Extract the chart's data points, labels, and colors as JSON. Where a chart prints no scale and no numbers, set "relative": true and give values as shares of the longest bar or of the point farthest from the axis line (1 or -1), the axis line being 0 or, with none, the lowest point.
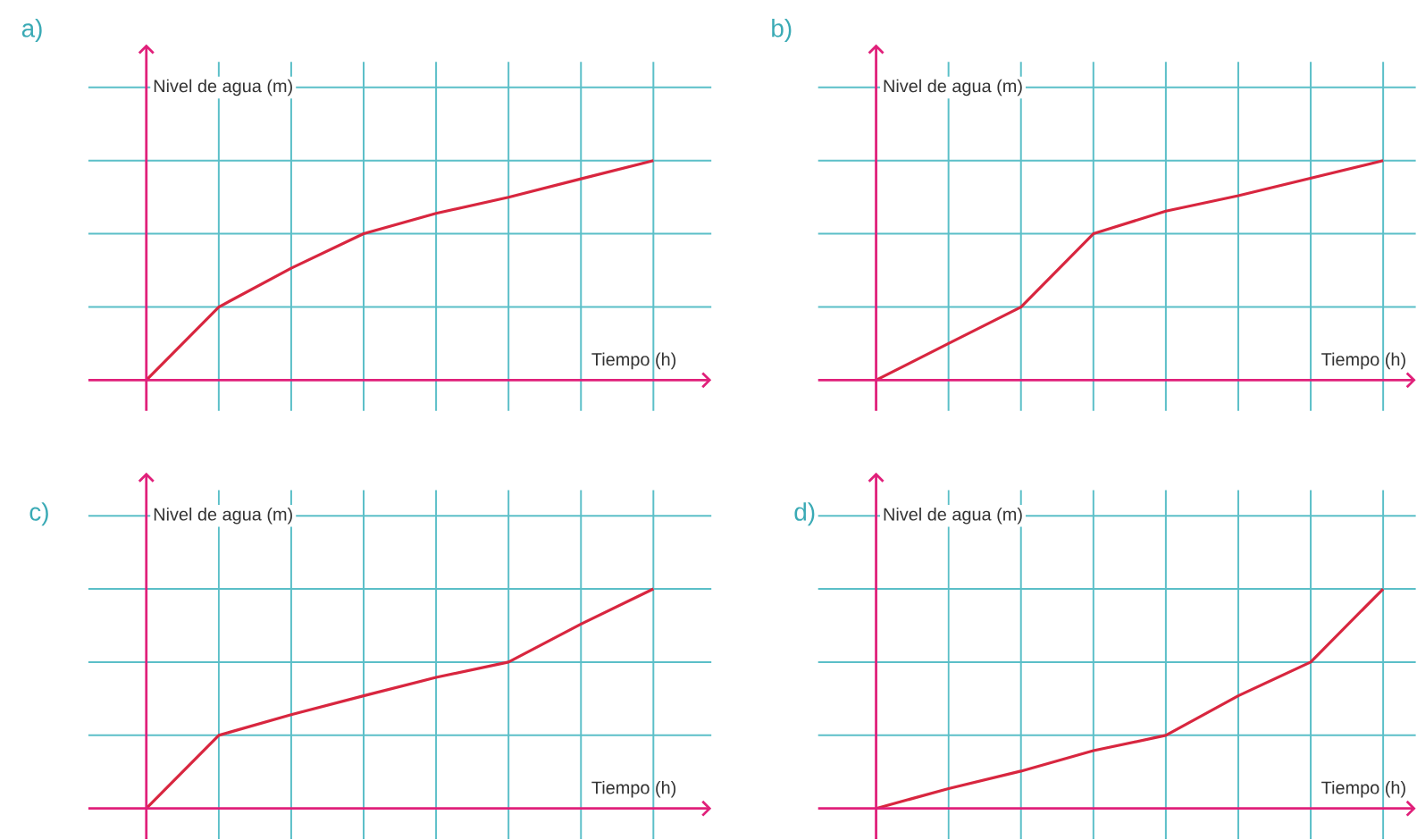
{
  "chart_data": [
    {
      "type": "line",
      "title": "a)",
      "xlabel": "Tiempo (h)",
      "ylabel": "Nivel de agua (m)",
      "categories": [
        null,
        null,
        null,
        null,
        null,
        null,
        null,
        null
      ],
      "values": [
        0,
        0.333,
        0.51,
        0.667,
        0.76,
        0.833,
        0.917,
        1
      ],
      "color": "#d8263f",
      "relative": true,
      "grid": true
    },
    {
      "type": "line",
      "title": "b)",
      "xlabel": "Tiempo (h)",
      "ylabel": "Nivel de agua (m)",
      "categories": [
        null,
        null,
        null,
        null,
        null,
        null,
        null,
        null
      ],
      "values": [
        0,
        0.167,
        0.333,
        0.667,
        0.77,
        0.84,
        0.92,
        1
      ],
      "color": "#d8263f",
      "relative": true,
      "grid": true
    },
    {
      "type": "line",
      "title": "c)",
      "xlabel": "Tiempo (h)",
      "ylabel": "Nivel de agua (m)",
      "categories": [
        null,
        null,
        null,
        null,
        null,
        null,
        null,
        null
      ],
      "values": [
        0,
        0.333,
        0.427,
        0.513,
        0.597,
        0.667,
        0.84,
        1
      ],
      "color": "#d8263f",
      "relative": true,
      "grid": true
    },
    {
      "type": "line",
      "title": "d)",
      "xlabel": "Tiempo (h)",
      "ylabel": "Nivel de agua (m)",
      "categories": [
        null,
        null,
        null,
        null,
        null,
        null,
        null,
        null
      ],
      "values": [
        0,
        0.09,
        0.17,
        0.263,
        0.333,
        0.513,
        0.667,
        1
      ],
      "color": "#d8263f",
      "relative": true,
      "grid": true
    }
  ]
}
